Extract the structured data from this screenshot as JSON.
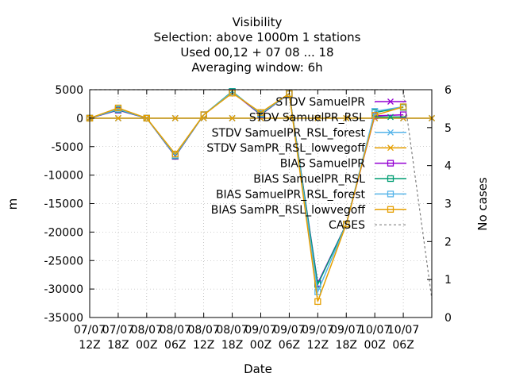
{
  "chart_data": {
    "type": "line",
    "title_lines": [
      "Visibility",
      "Selection: above 1000m      1 stations",
      "Used  00,12 + 07 08 ... 18",
      "Averaging window:  6h"
    ],
    "xlabel": "Date",
    "ylabel": "m",
    "y2label": "No cases",
    "ylim": [
      -35000,
      5000
    ],
    "y2lim": [
      0,
      6
    ],
    "yticks": [
      "5000",
      "0",
      "-5000",
      "-10000",
      "-15000",
      "-20000",
      "-25000",
      "-30000",
      "-35000"
    ],
    "y2ticks": [
      "6",
      "5",
      "4",
      "3",
      "2",
      "1",
      "0"
    ],
    "xtick_labels": [
      [
        "07/07",
        "12Z"
      ],
      [
        "07/07",
        "18Z"
      ],
      [
        "08/07",
        "00Z"
      ],
      [
        "08/07",
        "06Z"
      ],
      [
        "08/07",
        "12Z"
      ],
      [
        "08/07",
        "18Z"
      ],
      [
        "09/07",
        "00Z"
      ],
      [
        "09/07",
        "06Z"
      ],
      [
        "09/07",
        "12Z"
      ],
      [
        "09/07",
        "18Z"
      ],
      [
        "10/07",
        "00Z"
      ],
      [
        "10/07",
        "06Z"
      ]
    ],
    "grid": true,
    "legend_position": "top-right",
    "x_hours": [
      0,
      6,
      12,
      18,
      24,
      30,
      36,
      42,
      48,
      54,
      60,
      66,
      72
    ],
    "series": [
      {
        "name": "STDV SamuelPR",
        "color": "#9400d3",
        "marker": "x",
        "values": [
          0,
          0,
          0,
          0,
          0,
          0,
          0,
          0,
          0,
          0,
          0,
          0,
          0
        ]
      },
      {
        "name": "STDV SamuelPR_RSL",
        "color": "#009e73",
        "marker": "x",
        "values": [
          0,
          0,
          0,
          0,
          0,
          0,
          0,
          0,
          0,
          0,
          0,
          0,
          0
        ]
      },
      {
        "name": "STDV SamuelPR_RSL_forest",
        "color": "#56b4e9",
        "marker": "x",
        "values": [
          0,
          0,
          0,
          0,
          0,
          0,
          0,
          0,
          0,
          0,
          0,
          0,
          0
        ]
      },
      {
        "name": "STDV SamPR_RSL_lowvegoff",
        "color": "#e69f00",
        "marker": "x",
        "values": [
          0,
          0,
          0,
          0,
          0,
          0,
          0,
          0,
          0,
          0,
          0,
          0,
          0
        ]
      },
      {
        "name": "BIAS SamuelPR",
        "color": "#9400d3",
        "marker": "square",
        "values": [
          0,
          1400,
          0,
          -6700,
          600,
          4600,
          600,
          4300,
          -29000,
          -18600,
          400,
          600,
          null
        ]
      },
      {
        "name": "BIAS SamuelPR_RSL",
        "color": "#009e73",
        "marker": "square",
        "values": [
          0,
          1500,
          0,
          -6600,
          600,
          4700,
          700,
          4300,
          -29200,
          -18600,
          1000,
          1900,
          null
        ]
      },
      {
        "name": "BIAS SamuelPR_RSL_forest",
        "color": "#56b4e9",
        "marker": "square",
        "values": [
          0,
          1600,
          0,
          -6500,
          600,
          4600,
          800,
          4300,
          -30500,
          -18600,
          1200,
          2000,
          null
        ]
      },
      {
        "name": "BIAS SamPR_RSL_lowvegoff",
        "color": "#e69f00",
        "marker": "square",
        "values": [
          0,
          1800,
          0,
          -6300,
          600,
          4400,
          1000,
          4300,
          -32200,
          -18600,
          500,
          2000,
          null
        ]
      },
      {
        "name": "CASES",
        "color": "#808080",
        "marker": "none",
        "dashed": true,
        "axis": "y2",
        "values": [
          6,
          6,
          6,
          6,
          6,
          6,
          6,
          6,
          6,
          6,
          6,
          6,
          0.5
        ]
      }
    ]
  }
}
